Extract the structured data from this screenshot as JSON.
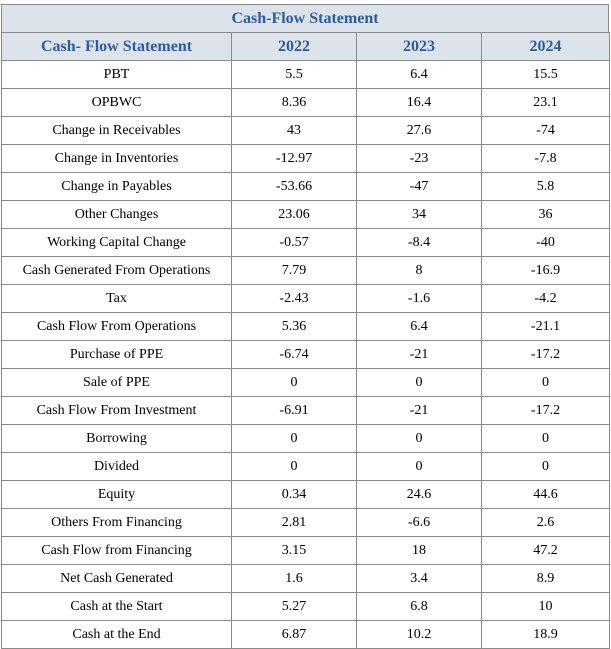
{
  "title": "Cash-Flow Statement",
  "header": [
    "Cash- Flow Statement",
    "2022",
    "2023",
    "2024"
  ],
  "rows": [
    [
      "PBT",
      "5.5",
      "6.4",
      "15.5"
    ],
    [
      "OPBWC",
      "8.36",
      "16.4",
      "23.1"
    ],
    [
      "Change in Receivables",
      "43",
      "27.6",
      "-74"
    ],
    [
      "Change in Inventories",
      "-12.97",
      "-23",
      "-7.8"
    ],
    [
      "Change in Payables",
      "-53.66",
      "-47",
      "5.8"
    ],
    [
      "Other Changes",
      "23.06",
      "34",
      "36"
    ],
    [
      "Working Capital Change",
      "-0.57",
      "-8.4",
      "-40"
    ],
    [
      "Cash Generated From Operations",
      "7.79",
      "8",
      "-16.9"
    ],
    [
      "Tax",
      "-2.43",
      "-1.6",
      "-4.2"
    ],
    [
      "Cash Flow From Operations",
      "5.36",
      "6.4",
      "-21.1"
    ],
    [
      "Purchase of PPE",
      "-6.74",
      "-21",
      "-17.2"
    ],
    [
      "Sale of PPE",
      "0",
      "0",
      "0"
    ],
    [
      "Cash Flow From Investment",
      "-6.91",
      "-21",
      "-17.2"
    ],
    [
      "Borrowing",
      "0",
      "0",
      "0"
    ],
    [
      "Divided",
      "0",
      "0",
      "0"
    ],
    [
      "Equity",
      "0.34",
      "24.6",
      "44.6"
    ],
    [
      "Others From Financing",
      "2.81",
      "-6.6",
      "2.6"
    ],
    [
      "Cash Flow from Financing",
      "3.15",
      "18",
      "47.2"
    ],
    [
      "Net Cash Generated",
      "1.6",
      "3.4",
      "8.9"
    ],
    [
      "Cash at the Start",
      "5.27",
      "6.8",
      "10"
    ],
    [
      "Cash at the End",
      "6.87",
      "10.2",
      "18.9"
    ]
  ]
}
